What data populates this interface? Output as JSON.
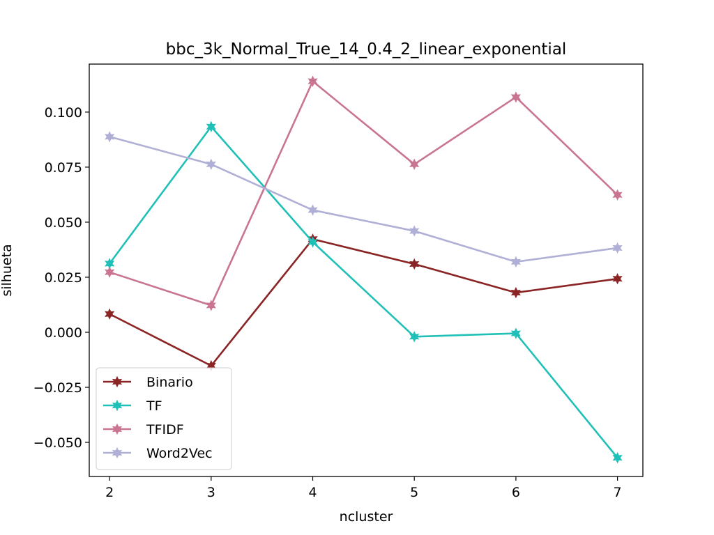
{
  "chart_data": {
    "type": "line",
    "title": "bbc_3k_Normal_True_14_0.4_2_linear_exponential",
    "xlabel": "ncluster",
    "ylabel": "silhueta",
    "x": [
      2,
      3,
      4,
      5,
      6,
      7
    ],
    "xlim": [
      1.8,
      7.25
    ],
    "ylim": [
      -0.0655,
      0.1218
    ],
    "xticks": [
      2,
      3,
      4,
      5,
      6,
      7
    ],
    "xtick_labels": [
      "2",
      "3",
      "4",
      "5",
      "6",
      "7"
    ],
    "yticks": [
      -0.05,
      -0.025,
      0.0,
      0.025,
      0.05,
      0.075,
      0.1
    ],
    "ytick_labels": [
      "−0.050",
      "−0.025",
      "0.000",
      "0.025",
      "0.050",
      "0.075",
      "0.100"
    ],
    "grid": false,
    "legend_position": "lower-left",
    "marker": "star",
    "series": [
      {
        "name": "Binario",
        "color": "#8b2525",
        "values": [
          0.0083,
          -0.0152,
          0.0423,
          0.031,
          0.018,
          0.0243
        ]
      },
      {
        "name": "TF",
        "color": "#1fc0b7",
        "values": [
          0.0312,
          0.0934,
          0.041,
          -0.002,
          -0.0005,
          -0.057
        ]
      },
      {
        "name": "TFIDF",
        "color": "#c97592",
        "values": [
          0.0273,
          0.0122,
          0.114,
          0.0763,
          0.1068,
          0.0624
        ]
      },
      {
        "name": "Word2Vec",
        "color": "#b0b0d6",
        "values": [
          0.0888,
          0.0763,
          0.0555,
          0.046,
          0.032,
          0.0383
        ]
      }
    ]
  }
}
